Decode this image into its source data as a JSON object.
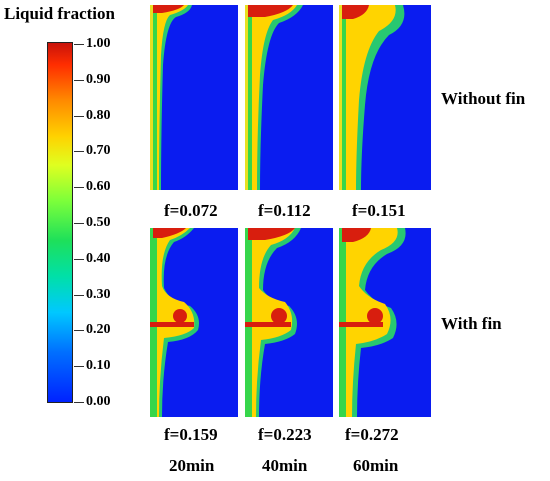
{
  "legend": {
    "title": "Liquid fraction",
    "ticks": [
      "1.00",
      "0.90",
      "0.80",
      "0.70",
      "0.60",
      "0.50",
      "0.40",
      "0.30",
      "0.20",
      "0.10",
      "0.00"
    ]
  },
  "rows": {
    "without_fin": "Without fin",
    "with_fin": "With fin"
  },
  "fractions_without_fin": [
    "f=0.072",
    "f=0.112",
    "f=0.151"
  ],
  "fractions_with_fin": [
    "f=0.159",
    "f=0.223",
    "f=0.272"
  ],
  "times": [
    "20min",
    "40min",
    "60min"
  ],
  "colors": {
    "solid": "#0a1cf0",
    "liquid": "#d81e0e",
    "mushy": "#ffd400",
    "transition": "#2ee65a"
  }
}
